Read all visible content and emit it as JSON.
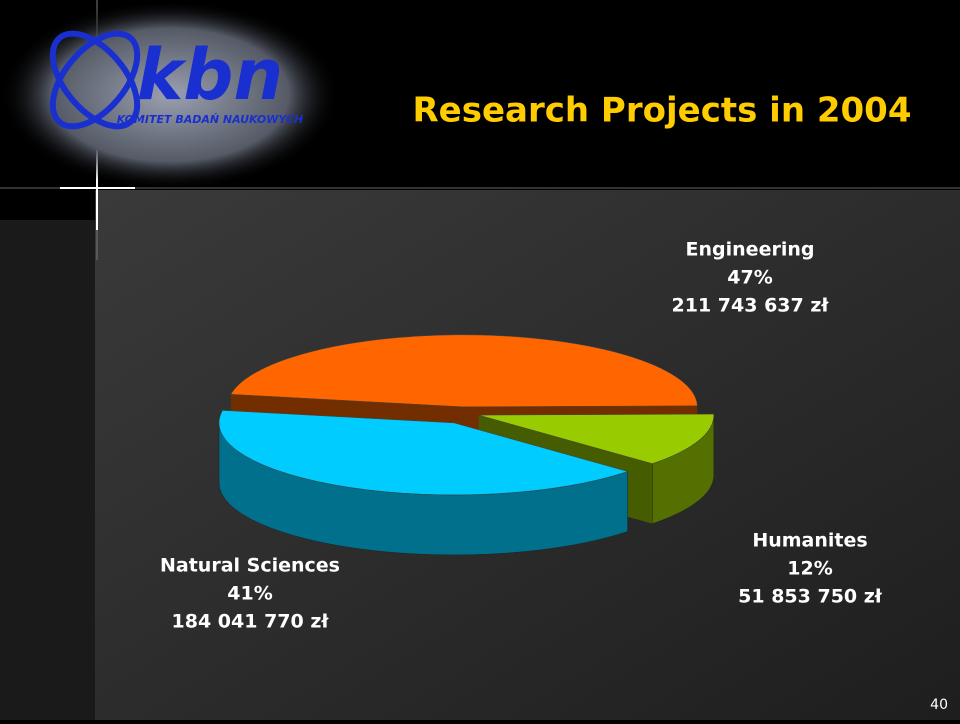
{
  "logo": {
    "name": "kbn",
    "subtitle": "KOMITET BADAŃ NAUKOWYCH"
  },
  "page_number": "40",
  "chart_data": {
    "type": "pie",
    "title": "Research Projects in 2004",
    "categories": [
      "Engineering",
      "Humanites",
      "Natural Sciences"
    ],
    "values": [
      47,
      12,
      41
    ],
    "value_labels": [
      "47%",
      "12%",
      "41%"
    ],
    "amounts": [
      "211 743 637 zł",
      "51 853 750 zł",
      "184 041 770 zł"
    ],
    "colors": [
      "#ff6600",
      "#99cc00",
      "#00ccff"
    ]
  }
}
